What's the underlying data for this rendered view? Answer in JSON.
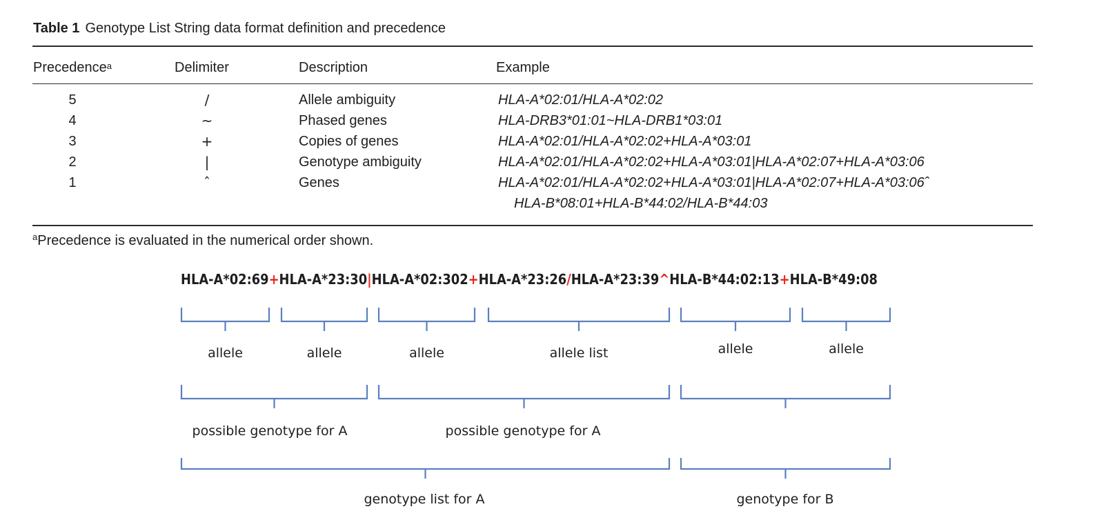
{
  "table": {
    "label": "Table 1",
    "title": "Genotype List String data format definition and precedence",
    "headers": {
      "precedence": "Precedence",
      "precedence_sup": "a",
      "delimiter": "Delimiter",
      "description": "Description",
      "example": "Example"
    },
    "rows": [
      {
        "precedence": "5",
        "delimiter": "/",
        "description": "Allele ambiguity",
        "example": "HLA-A*02:01/HLA-A*02:02",
        "example_cont": ""
      },
      {
        "precedence": "4",
        "delimiter": "~",
        "description": "Phased genes",
        "example": "HLA-DRB3*01:01~HLA-DRB1*03:01",
        "example_cont": ""
      },
      {
        "precedence": "3",
        "delimiter": "+",
        "description": "Copies of genes",
        "example": "HLA-A*02:01/HLA-A*02:02+HLA-A*03:01",
        "example_cont": ""
      },
      {
        "precedence": "2",
        "delimiter": "|",
        "description": "Genotype ambiguity",
        "example": "HLA-A*02:01/HLA-A*02:02+HLA-A*03:01|HLA-A*02:07+HLA-A*03:06",
        "example_cont": ""
      },
      {
        "precedence": "1",
        "delimiter": "ˆ",
        "description": "Genes",
        "example": "HLA-A*02:01/HLA-A*02:02+HLA-A*03:01|HLA-A*02:07+HLA-A*03:06ˆ",
        "example_cont": "HLA-B*08:01+HLA-B*44:02/HLA-B*44:03"
      }
    ],
    "footnote_sup": "a",
    "footnote": "Precedence is evaluated in the numerical order shown."
  },
  "diagram": {
    "gl_string": [
      {
        "text": "HLA-A*02:69",
        "red": false
      },
      {
        "text": "+",
        "red": true
      },
      {
        "text": "HLA-A*23:30",
        "red": false
      },
      {
        "text": "|",
        "red": true
      },
      {
        "text": "HLA-A*02:302",
        "red": false
      },
      {
        "text": "+",
        "red": true
      },
      {
        "text": "HLA-A*23:26",
        "red": false
      },
      {
        "text": "/",
        "red": true
      },
      {
        "text": "HLA-A*23:39",
        "red": false
      },
      {
        "text": "^",
        "red": true
      },
      {
        "text": "HLA-B*44:02:13",
        "red": false
      },
      {
        "text": "+",
        "red": true
      },
      {
        "text": "HLA-B*49:08",
        "red": false
      }
    ],
    "level1_labels": [
      "allele",
      "allele",
      "allele",
      "allele list",
      "allele",
      "allele"
    ],
    "level2_labels": [
      "possible genotype for A",
      "possible genotype for A",
      ""
    ],
    "level3_labels": [
      "genotype list for A",
      "genotype for B"
    ],
    "colors": {
      "delimiter_red": "#e8251b",
      "bracket_blue": "#5b7fbf",
      "text": "#1e1e1e"
    }
  }
}
